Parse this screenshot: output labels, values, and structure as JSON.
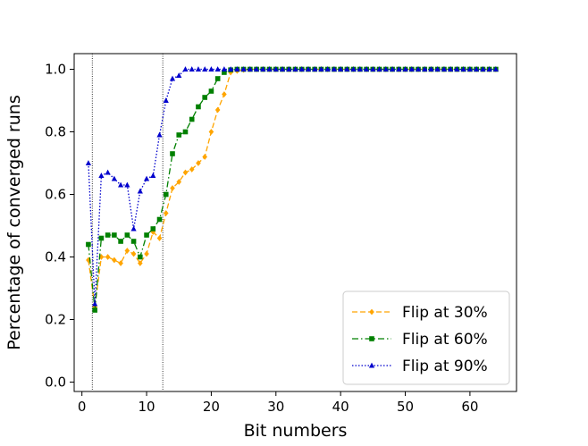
{
  "chart_data": {
    "type": "line",
    "title": "",
    "xlabel": "Bit numbers",
    "ylabel": "Percentage of converged runs",
    "xlim": [
      -1.2,
      67.2
    ],
    "ylim": [
      -0.03,
      1.05
    ],
    "xticks": [
      0,
      10,
      20,
      30,
      40,
      50,
      60
    ],
    "yticks": [
      0.0,
      0.2,
      0.4,
      0.6,
      0.8,
      1.0
    ],
    "xtick_labels": [
      "0",
      "10",
      "20",
      "30",
      "40",
      "50",
      "60"
    ],
    "ytick_labels": [
      "0.0",
      "0.2",
      "0.4",
      "0.6",
      "0.8",
      "1.0"
    ],
    "grid": false,
    "legend_position": "lower-right",
    "vlines": [
      1.6,
      12.5
    ],
    "series": [
      {
        "name": "Flip at 30%",
        "color": "#FFA500",
        "linestyle": "dashed",
        "marker": "diamond",
        "x": [
          1,
          2,
          3,
          4,
          5,
          6,
          7,
          8,
          9,
          10,
          11,
          12,
          13,
          14,
          15,
          16,
          17,
          18,
          19,
          20,
          21,
          22,
          23,
          24,
          25,
          26,
          27,
          28,
          29,
          30,
          31,
          32,
          33,
          34,
          35,
          36,
          37,
          38,
          39,
          40,
          41,
          42,
          43,
          44,
          45,
          46,
          47,
          48,
          49,
          50,
          51,
          52,
          53,
          54,
          55,
          56,
          57,
          58,
          59,
          60,
          61,
          62,
          63,
          64
        ],
        "y": [
          0.39,
          0.24,
          0.4,
          0.4,
          0.39,
          0.38,
          0.42,
          0.41,
          0.38,
          0.41,
          0.48,
          0.46,
          0.54,
          0.62,
          0.64,
          0.67,
          0.68,
          0.7,
          0.72,
          0.8,
          0.87,
          0.92,
          0.99,
          0.995,
          0.998,
          1.0,
          1.0,
          1.0,
          1.0,
          1.0,
          1.0,
          1.0,
          1.0,
          1.0,
          1.0,
          1.0,
          1.0,
          1.0,
          1.0,
          1.0,
          1.0,
          1.0,
          1.0,
          1.0,
          1.0,
          1.0,
          1.0,
          1.0,
          1.0,
          1.0,
          1.0,
          1.0,
          1.0,
          1.0,
          1.0,
          1.0,
          1.0,
          1.0,
          1.0,
          1.0,
          1.0,
          1.0,
          1.0,
          1.0
        ]
      },
      {
        "name": "Flip at 60%",
        "color": "#008000",
        "linestyle": "dashdot",
        "marker": "square",
        "x": [
          1,
          2,
          3,
          4,
          5,
          6,
          7,
          8,
          9,
          10,
          11,
          12,
          13,
          14,
          15,
          16,
          17,
          18,
          19,
          20,
          21,
          22,
          23,
          24,
          25,
          26,
          27,
          28,
          29,
          30,
          31,
          32,
          33,
          34,
          35,
          36,
          37,
          38,
          39,
          40,
          41,
          42,
          43,
          44,
          45,
          46,
          47,
          48,
          49,
          50,
          51,
          52,
          53,
          54,
          55,
          56,
          57,
          58,
          59,
          60,
          61,
          62,
          63,
          64
        ],
        "y": [
          0.44,
          0.23,
          0.46,
          0.47,
          0.47,
          0.45,
          0.47,
          0.45,
          0.4,
          0.47,
          0.49,
          0.52,
          0.6,
          0.73,
          0.79,
          0.8,
          0.84,
          0.88,
          0.91,
          0.93,
          0.97,
          0.99,
          0.998,
          1.0,
          1.0,
          1.0,
          1.0,
          1.0,
          1.0,
          1.0,
          1.0,
          1.0,
          1.0,
          1.0,
          1.0,
          1.0,
          1.0,
          1.0,
          1.0,
          1.0,
          1.0,
          1.0,
          1.0,
          1.0,
          1.0,
          1.0,
          1.0,
          1.0,
          1.0,
          1.0,
          1.0,
          1.0,
          1.0,
          1.0,
          1.0,
          1.0,
          1.0,
          1.0,
          1.0,
          1.0,
          1.0,
          1.0,
          1.0,
          1.0
        ]
      },
      {
        "name": "Flip at 90%",
        "color": "#0000CD",
        "linestyle": "dotted",
        "marker": "triangle",
        "x": [
          1,
          2,
          3,
          4,
          5,
          6,
          7,
          8,
          9,
          10,
          11,
          12,
          13,
          14,
          15,
          16,
          17,
          18,
          19,
          20,
          21,
          22,
          23,
          24,
          25,
          26,
          27,
          28,
          29,
          30,
          31,
          32,
          33,
          34,
          35,
          36,
          37,
          38,
          39,
          40,
          41,
          42,
          43,
          44,
          45,
          46,
          47,
          48,
          49,
          50,
          51,
          52,
          53,
          54,
          55,
          56,
          57,
          58,
          59,
          60,
          61,
          62,
          63,
          64
        ],
        "y": [
          0.7,
          0.25,
          0.66,
          0.67,
          0.65,
          0.63,
          0.63,
          0.49,
          0.61,
          0.65,
          0.66,
          0.79,
          0.9,
          0.97,
          0.98,
          1.0,
          1.0,
          1.0,
          1.0,
          1.0,
          1.0,
          1.0,
          1.0,
          1.0,
          1.0,
          1.0,
          1.0,
          1.0,
          1.0,
          1.0,
          1.0,
          1.0,
          1.0,
          1.0,
          1.0,
          1.0,
          1.0,
          1.0,
          1.0,
          1.0,
          1.0,
          1.0,
          1.0,
          1.0,
          1.0,
          1.0,
          1.0,
          1.0,
          1.0,
          1.0,
          1.0,
          1.0,
          1.0,
          1.0,
          1.0,
          1.0,
          1.0,
          1.0,
          1.0,
          1.0,
          1.0,
          1.0,
          1.0,
          1.0
        ]
      }
    ]
  }
}
